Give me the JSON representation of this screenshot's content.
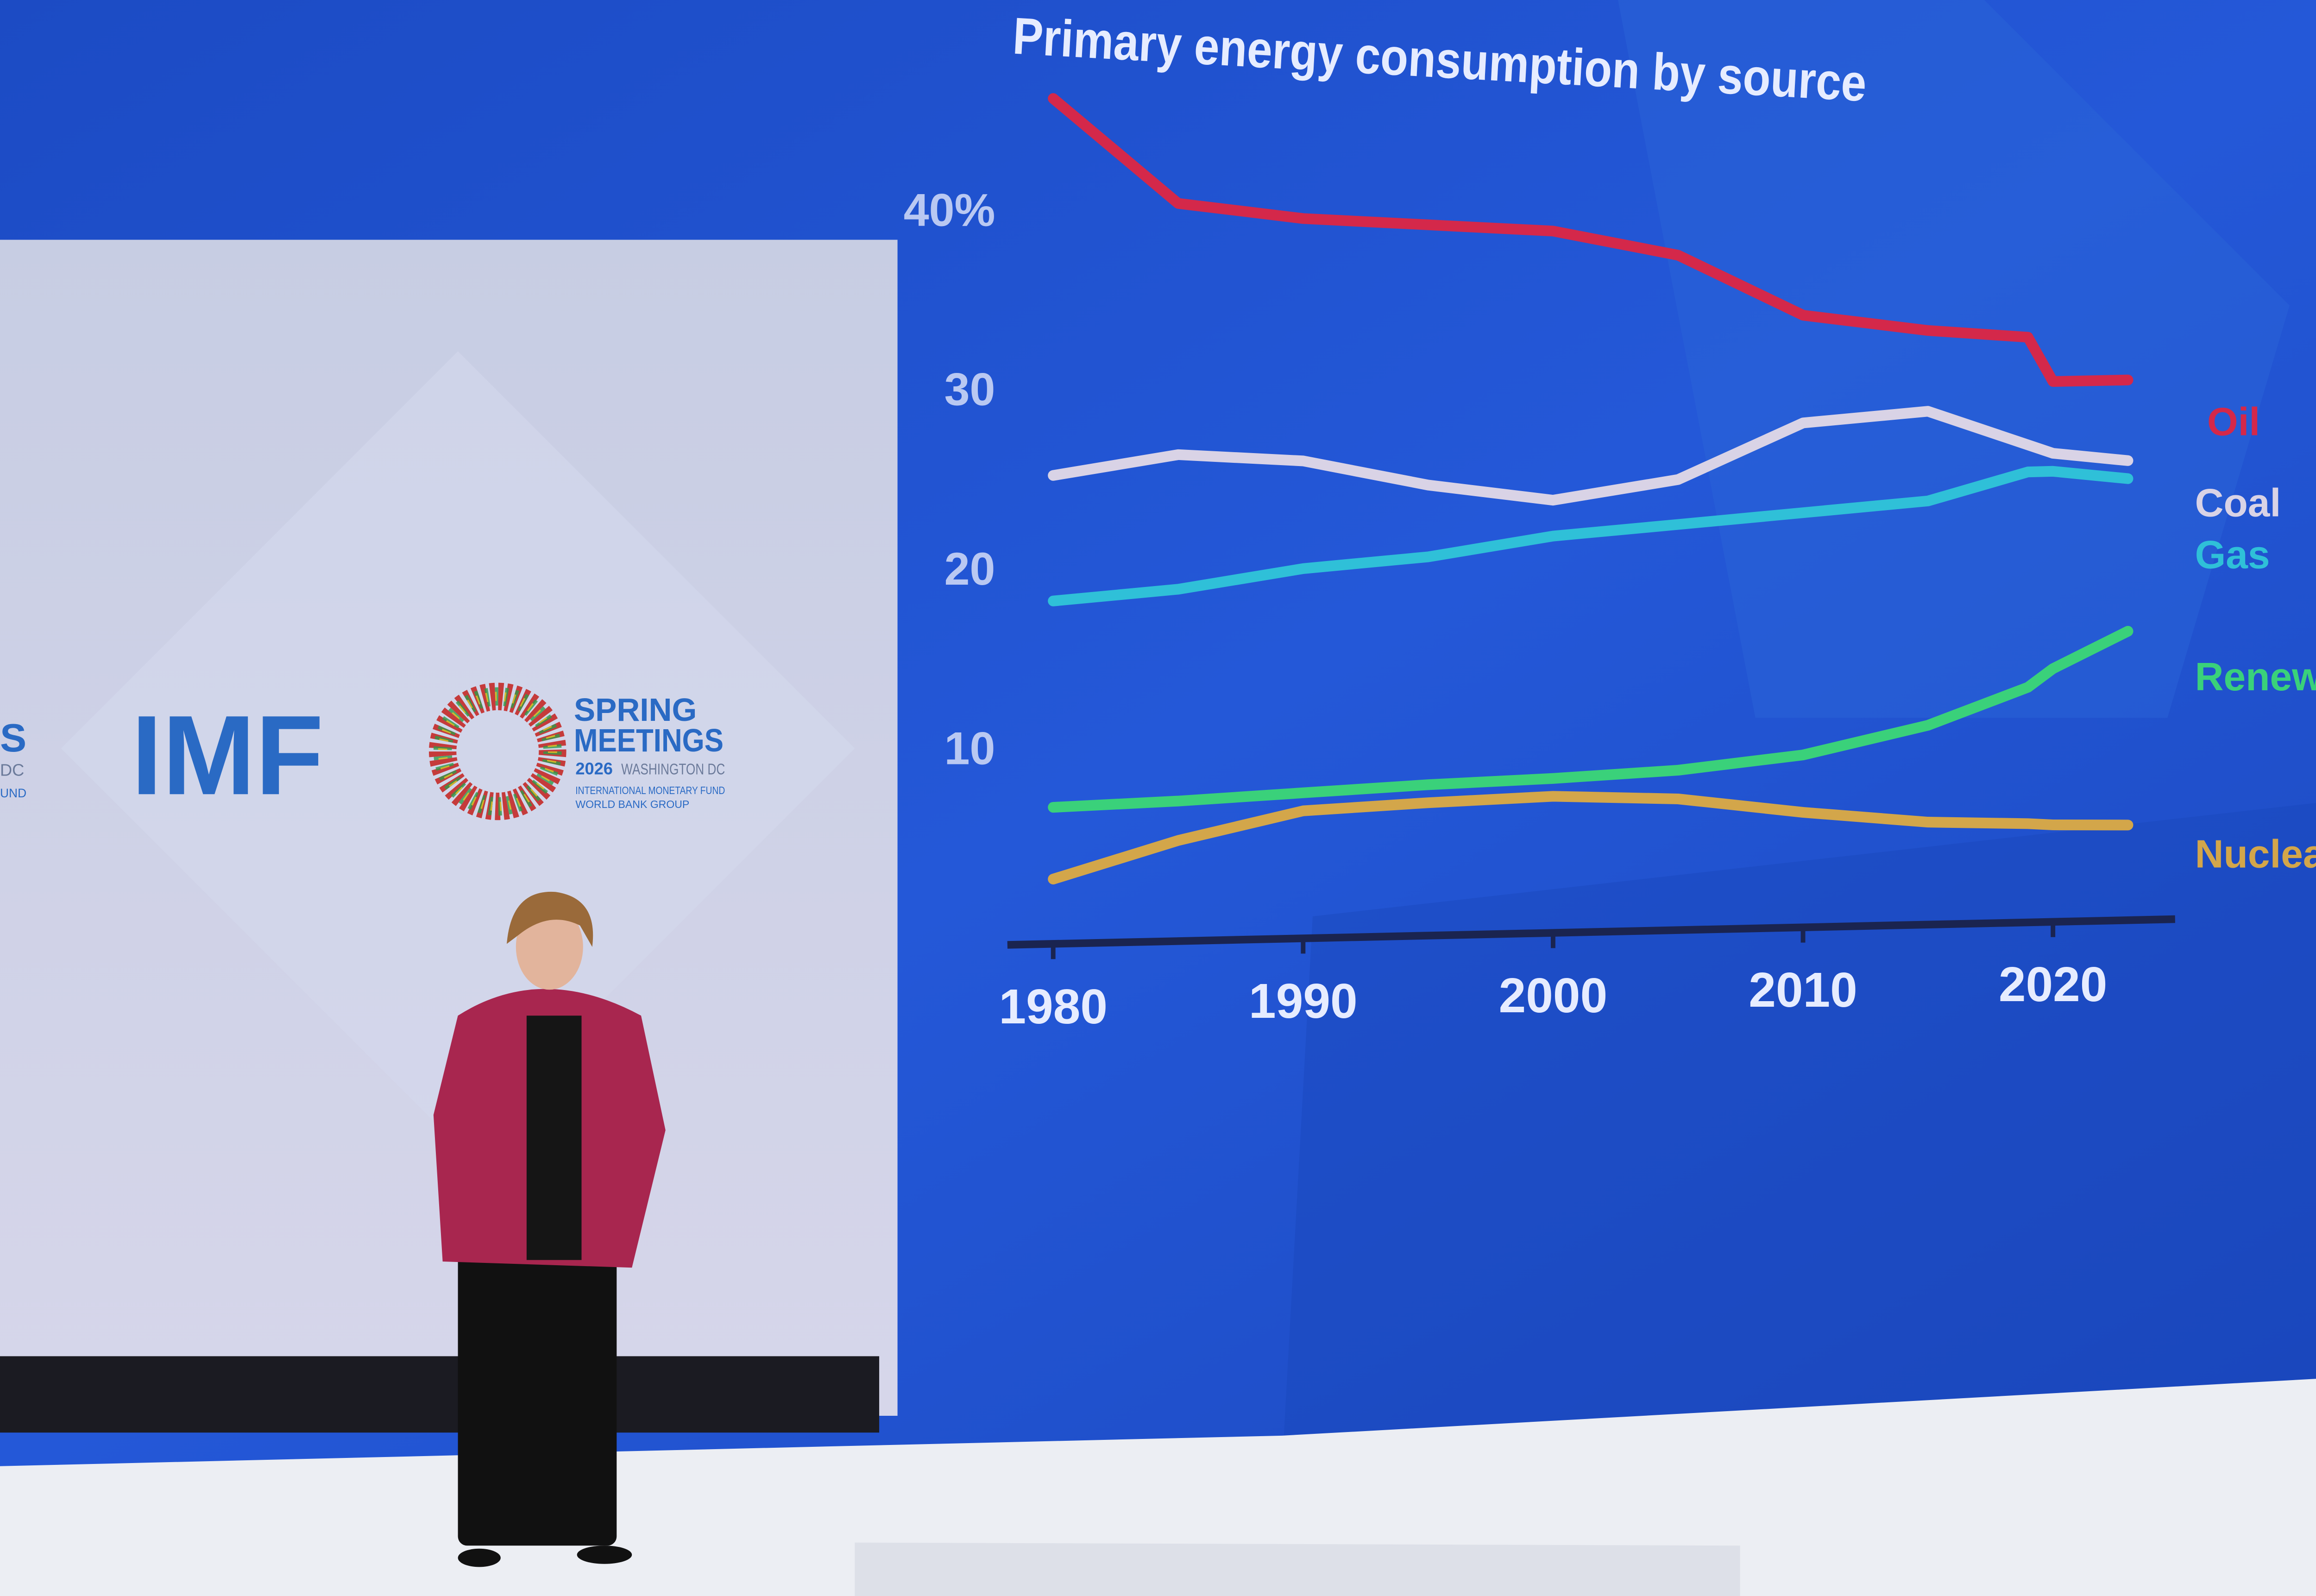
{
  "backdrop": {
    "left_logo_partial": "S",
    "left_logo_partial_sub1": "DC",
    "left_logo_partial_sub2": "UND",
    "imf_logo": "IMF",
    "spring_meetings": {
      "line1": "SPRING",
      "line2": "MEETINGS",
      "year": "2026",
      "location": "WASHINGTON DC",
      "org1": "INTERNATIONAL MONETARY FUND",
      "org2": "WORLD BANK GROUP"
    }
  },
  "colors": {
    "screen": "#1f56d6",
    "oil": "#d4284a",
    "coal": "#d9d3e6",
    "gas": "#2fc0d8",
    "renewables": "#3ad17a",
    "nuclear": "#d3a64a",
    "backdrop": "#c9cfe4",
    "logo_blue": "#2a6ac4"
  },
  "chart_data": {
    "type": "line",
    "title": "Primary energy consumption by source",
    "xlabel": "",
    "ylabel": "",
    "x_ticks": [
      "1980",
      "1990",
      "2000",
      "2010",
      "2020"
    ],
    "y_ticks": [
      "40%",
      "30",
      "20",
      "10"
    ],
    "y_tick_values": [
      40,
      30,
      20,
      10
    ],
    "xlim": [
      1980,
      2023
    ],
    "ylim": [
      0,
      46
    ],
    "grid": false,
    "legend": "right (inline labels)",
    "x": [
      1980,
      1985,
      1990,
      1995,
      2000,
      2005,
      2010,
      2015,
      2019,
      2020,
      2023
    ],
    "series": [
      {
        "name": "Oil",
        "values": [
          46,
          40,
          39,
          38.5,
          38,
          36.5,
          33,
          32,
          31.5,
          29,
          29
        ]
      },
      {
        "name": "Coal",
        "values": [
          25,
          26,
          25.5,
          24,
          23,
          24,
          27,
          27.5,
          25.5,
          25,
          24.5
        ]
      },
      {
        "name": "Gas",
        "values": [
          18,
          18.5,
          19.5,
          20,
          21,
          21.5,
          22,
          22.5,
          24,
          24,
          23.5
        ]
      },
      {
        "name": "Renewables",
        "values": [
          6.5,
          6.7,
          7,
          7.3,
          7.5,
          7.8,
          8.5,
          10,
          12,
          13,
          15
        ]
      },
      {
        "name": "Nuclear",
        "values": [
          2.5,
          4.5,
          6,
          6.3,
          6.5,
          6.2,
          5.3,
          4.6,
          4.4,
          4.3,
          4.2
        ]
      }
    ]
  }
}
